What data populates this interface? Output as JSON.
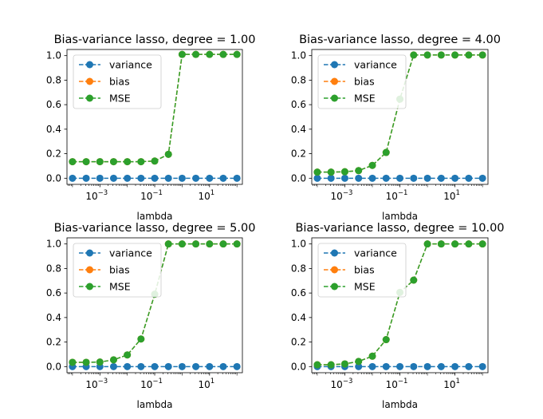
{
  "chart_data": [
    {
      "type": "line",
      "title": "Bias-variance lasso, degree = 1.00",
      "xlabel": "lambda",
      "ylabel": "",
      "xscale": "log",
      "xlim": [
        6.3e-05,
        158
      ],
      "ylim": [
        -0.05,
        1.05
      ],
      "x": [
        0.0001,
        0.001,
        0.01,
        0.1,
        1,
        10,
        100
      ],
      "x_ticks": [
        {
          "value": 0.001,
          "base": "10",
          "exp": "−3"
        },
        {
          "value": 0.1,
          "base": "10",
          "exp": "−1"
        },
        {
          "value": 10,
          "base": "10",
          "exp": "1"
        }
      ],
      "y_ticks": [
        "0.0",
        "0.2",
        "0.4",
        "0.6",
        "0.8",
        "1.0"
      ],
      "legend_position": "upper-left",
      "series": [
        {
          "name": "variance",
          "color": "#1f77b4",
          "x": [
            0.0001,
            0.000316,
            0.001,
            0.00316,
            0.01,
            0.0316,
            0.1,
            0.316,
            1,
            3.16,
            10,
            31.6,
            100
          ],
          "values": [
            0,
            0,
            0,
            0,
            0,
            0,
            0,
            0,
            0,
            0,
            0,
            0,
            0
          ]
        },
        {
          "name": "bias",
          "color": "#ff7f0e",
          "x": [
            0.0001,
            0.000316,
            0.001,
            0.00316,
            0.01,
            0.0316,
            0.1,
            0.316,
            1,
            3.16,
            10,
            31.6,
            100
          ],
          "values": [
            0.135,
            0.135,
            0.135,
            0.135,
            0.135,
            0.135,
            0.14,
            0.195,
            1.01,
            1.01,
            1.01,
            1.01,
            1.01
          ]
        },
        {
          "name": "MSE",
          "color": "#2ca02c",
          "x": [
            0.0001,
            0.000316,
            0.001,
            0.00316,
            0.01,
            0.0316,
            0.1,
            0.316,
            1,
            3.16,
            10,
            31.6,
            100
          ],
          "values": [
            0.135,
            0.135,
            0.135,
            0.135,
            0.135,
            0.135,
            0.14,
            0.195,
            1.01,
            1.01,
            1.01,
            1.01,
            1.01
          ]
        }
      ]
    },
    {
      "type": "line",
      "title": "Bias-variance lasso, degree = 4.00",
      "xlabel": "lambda",
      "ylabel": "",
      "xscale": "log",
      "xlim": [
        6.3e-05,
        158
      ],
      "ylim": [
        -0.05,
        1.05
      ],
      "x_ticks": [
        {
          "value": 0.001,
          "base": "10",
          "exp": "−3"
        },
        {
          "value": 0.1,
          "base": "10",
          "exp": "−1"
        },
        {
          "value": 10,
          "base": "10",
          "exp": "1"
        }
      ],
      "y_ticks": [
        "0.0",
        "0.2",
        "0.4",
        "0.6",
        "0.8",
        "1.0"
      ],
      "legend_position": "upper-left",
      "series": [
        {
          "name": "variance",
          "color": "#1f77b4",
          "x": [
            0.0001,
            0.000316,
            0.001,
            0.00316,
            0.01,
            0.0316,
            0.1,
            0.316,
            1,
            3.16,
            10,
            31.6,
            100
          ],
          "values": [
            0,
            0,
            0,
            0,
            0,
            0,
            0,
            0,
            0,
            0,
            0,
            0,
            0
          ]
        },
        {
          "name": "bias",
          "color": "#ff7f0e",
          "x": [
            0.0001,
            0.000316,
            0.001,
            0.00316,
            0.01,
            0.0316,
            0.1,
            0.316,
            1,
            3.16,
            10,
            31.6,
            100
          ],
          "values": [
            0.05,
            0.05,
            0.053,
            0.062,
            0.105,
            0.21,
            0.645,
            1.005,
            1.005,
            1.005,
            1.005,
            1.005,
            1.005
          ]
        },
        {
          "name": "MSE",
          "color": "#2ca02c",
          "x": [
            0.0001,
            0.000316,
            0.001,
            0.00316,
            0.01,
            0.0316,
            0.1,
            0.316,
            1,
            3.16,
            10,
            31.6,
            100
          ],
          "values": [
            0.05,
            0.05,
            0.053,
            0.062,
            0.105,
            0.21,
            0.645,
            1.005,
            1.005,
            1.005,
            1.005,
            1.005,
            1.005
          ]
        }
      ]
    },
    {
      "type": "line",
      "title": "Bias-variance lasso, degree = 5.00",
      "xlabel": "lambda",
      "ylabel": "",
      "xscale": "log",
      "xlim": [
        6.3e-05,
        158
      ],
      "ylim": [
        -0.05,
        1.05
      ],
      "x_ticks": [
        {
          "value": 0.001,
          "base": "10",
          "exp": "−3"
        },
        {
          "value": 0.1,
          "base": "10",
          "exp": "−1"
        },
        {
          "value": 10,
          "base": "10",
          "exp": "1"
        }
      ],
      "y_ticks": [
        "0.0",
        "0.2",
        "0.4",
        "0.6",
        "0.8",
        "1.0"
      ],
      "legend_position": "upper-left",
      "series": [
        {
          "name": "variance",
          "color": "#1f77b4",
          "x": [
            0.0001,
            0.000316,
            0.001,
            0.00316,
            0.01,
            0.0316,
            0.1,
            0.316,
            1,
            3.16,
            10,
            31.6,
            100
          ],
          "values": [
            0,
            0,
            0,
            0,
            0,
            0,
            0,
            0,
            0,
            0,
            0,
            0,
            0
          ]
        },
        {
          "name": "bias",
          "color": "#ff7f0e",
          "x": [
            0.0001,
            0.000316,
            0.001,
            0.00316,
            0.01,
            0.0316,
            0.1,
            0.316,
            1,
            3.16,
            10,
            31.6,
            100
          ],
          "values": [
            0.035,
            0.035,
            0.037,
            0.055,
            0.095,
            0.225,
            0.59,
            1.0,
            1.0,
            1.0,
            1.0,
            1.0,
            1.0
          ]
        },
        {
          "name": "MSE",
          "color": "#2ca02c",
          "x": [
            0.0001,
            0.000316,
            0.001,
            0.00316,
            0.01,
            0.0316,
            0.1,
            0.316,
            1,
            3.16,
            10,
            31.6,
            100
          ],
          "values": [
            0.035,
            0.035,
            0.037,
            0.055,
            0.095,
            0.225,
            0.59,
            1.0,
            1.0,
            1.0,
            1.0,
            1.0,
            1.0
          ]
        }
      ]
    },
    {
      "type": "line",
      "title": "Bias-variance lasso, degree = 10.00",
      "xlabel": "lambda",
      "ylabel": "",
      "xscale": "log",
      "xlim": [
        6.3e-05,
        158
      ],
      "ylim": [
        -0.05,
        1.05
      ],
      "x_ticks": [
        {
          "value": 0.001,
          "base": "10",
          "exp": "−3"
        },
        {
          "value": 0.1,
          "base": "10",
          "exp": "−1"
        },
        {
          "value": 10,
          "base": "10",
          "exp": "1"
        }
      ],
      "y_ticks": [
        "0.0",
        "0.2",
        "0.4",
        "0.6",
        "0.8",
        "1.0"
      ],
      "legend_position": "upper-left",
      "series": [
        {
          "name": "variance",
          "color": "#1f77b4",
          "x": [
            0.0001,
            0.000316,
            0.001,
            0.00316,
            0.01,
            0.0316,
            0.1,
            0.316,
            1,
            3.16,
            10,
            31.6,
            100
          ],
          "values": [
            0,
            0,
            0,
            0,
            0,
            0,
            0,
            0,
            0,
            0,
            0,
            0,
            0
          ]
        },
        {
          "name": "bias",
          "color": "#ff7f0e",
          "x": [
            0.0001,
            0.000316,
            0.001,
            0.00316,
            0.01,
            0.0316,
            0.1,
            0.316,
            1,
            3.16,
            10,
            31.6,
            100
          ],
          "values": [
            0.015,
            0.015,
            0.022,
            0.042,
            0.085,
            0.22,
            0.605,
            0.705,
            1.0,
            1.0,
            1.0,
            1.0,
            1.0
          ]
        },
        {
          "name": "MSE",
          "color": "#2ca02c",
          "x": [
            0.0001,
            0.000316,
            0.001,
            0.00316,
            0.01,
            0.0316,
            0.1,
            0.316,
            1,
            3.16,
            10,
            31.6,
            100
          ],
          "values": [
            0.015,
            0.015,
            0.022,
            0.042,
            0.085,
            0.22,
            0.605,
            0.705,
            1.0,
            1.0,
            1.0,
            1.0,
            1.0
          ]
        }
      ]
    }
  ]
}
